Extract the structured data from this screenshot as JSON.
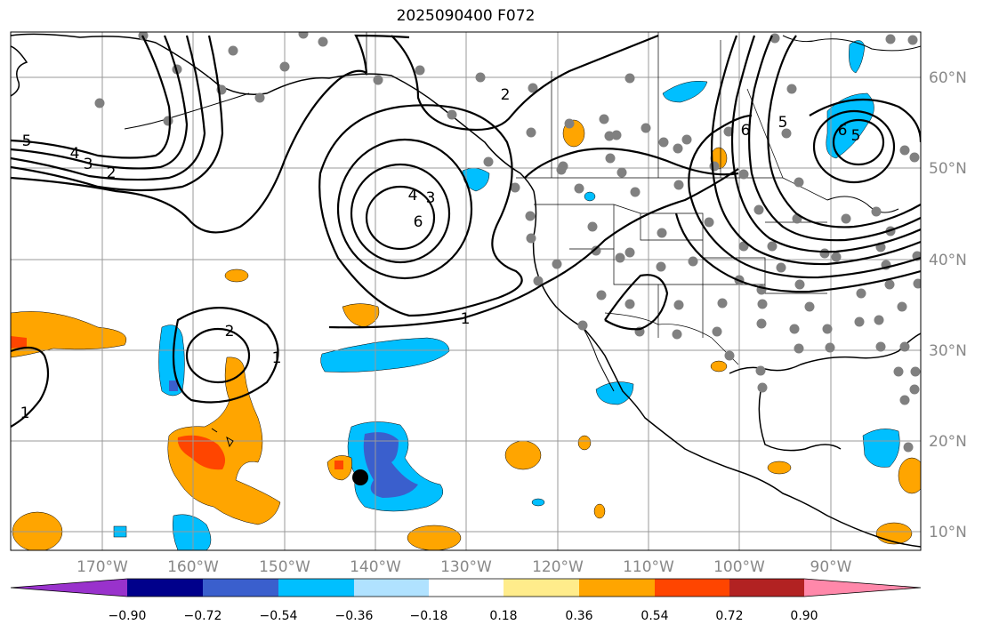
{
  "title": "2025090400 F072",
  "map": {
    "lon_labels": [
      "170°W",
      "160°W",
      "150°W",
      "140°W",
      "130°W",
      "120°W",
      "110°W",
      "100°W",
      "90°W"
    ],
    "lat_labels": [
      "60°N",
      "50°N",
      "40°N",
      "30°N",
      "20°N",
      "10°N"
    ],
    "contour_labels": [
      "5",
      "4",
      "3",
      "2",
      "2",
      "4",
      "3",
      "6",
      "2",
      "1",
      "1",
      "1",
      "6",
      "5",
      "6",
      "5"
    ],
    "colors": {
      "land_outline": "#000000",
      "grid": "#999999",
      "station_dot": "#808080",
      "tc_marker": "#000000"
    }
  },
  "colorbar": {
    "tick_labels": [
      "−0.90",
      "−0.72",
      "−0.54",
      "−0.36",
      "−0.18",
      "0.18",
      "0.36",
      "0.54",
      "0.72",
      "0.90"
    ],
    "bin_colors": [
      "#9932cc",
      "#00008b",
      "#3a5fcd",
      "#00bfff",
      "#b0e2ff",
      "#ffffff",
      "#ffec8b",
      "#ffa500",
      "#ff4500",
      "#b22222",
      "#ff88aa"
    ]
  }
}
